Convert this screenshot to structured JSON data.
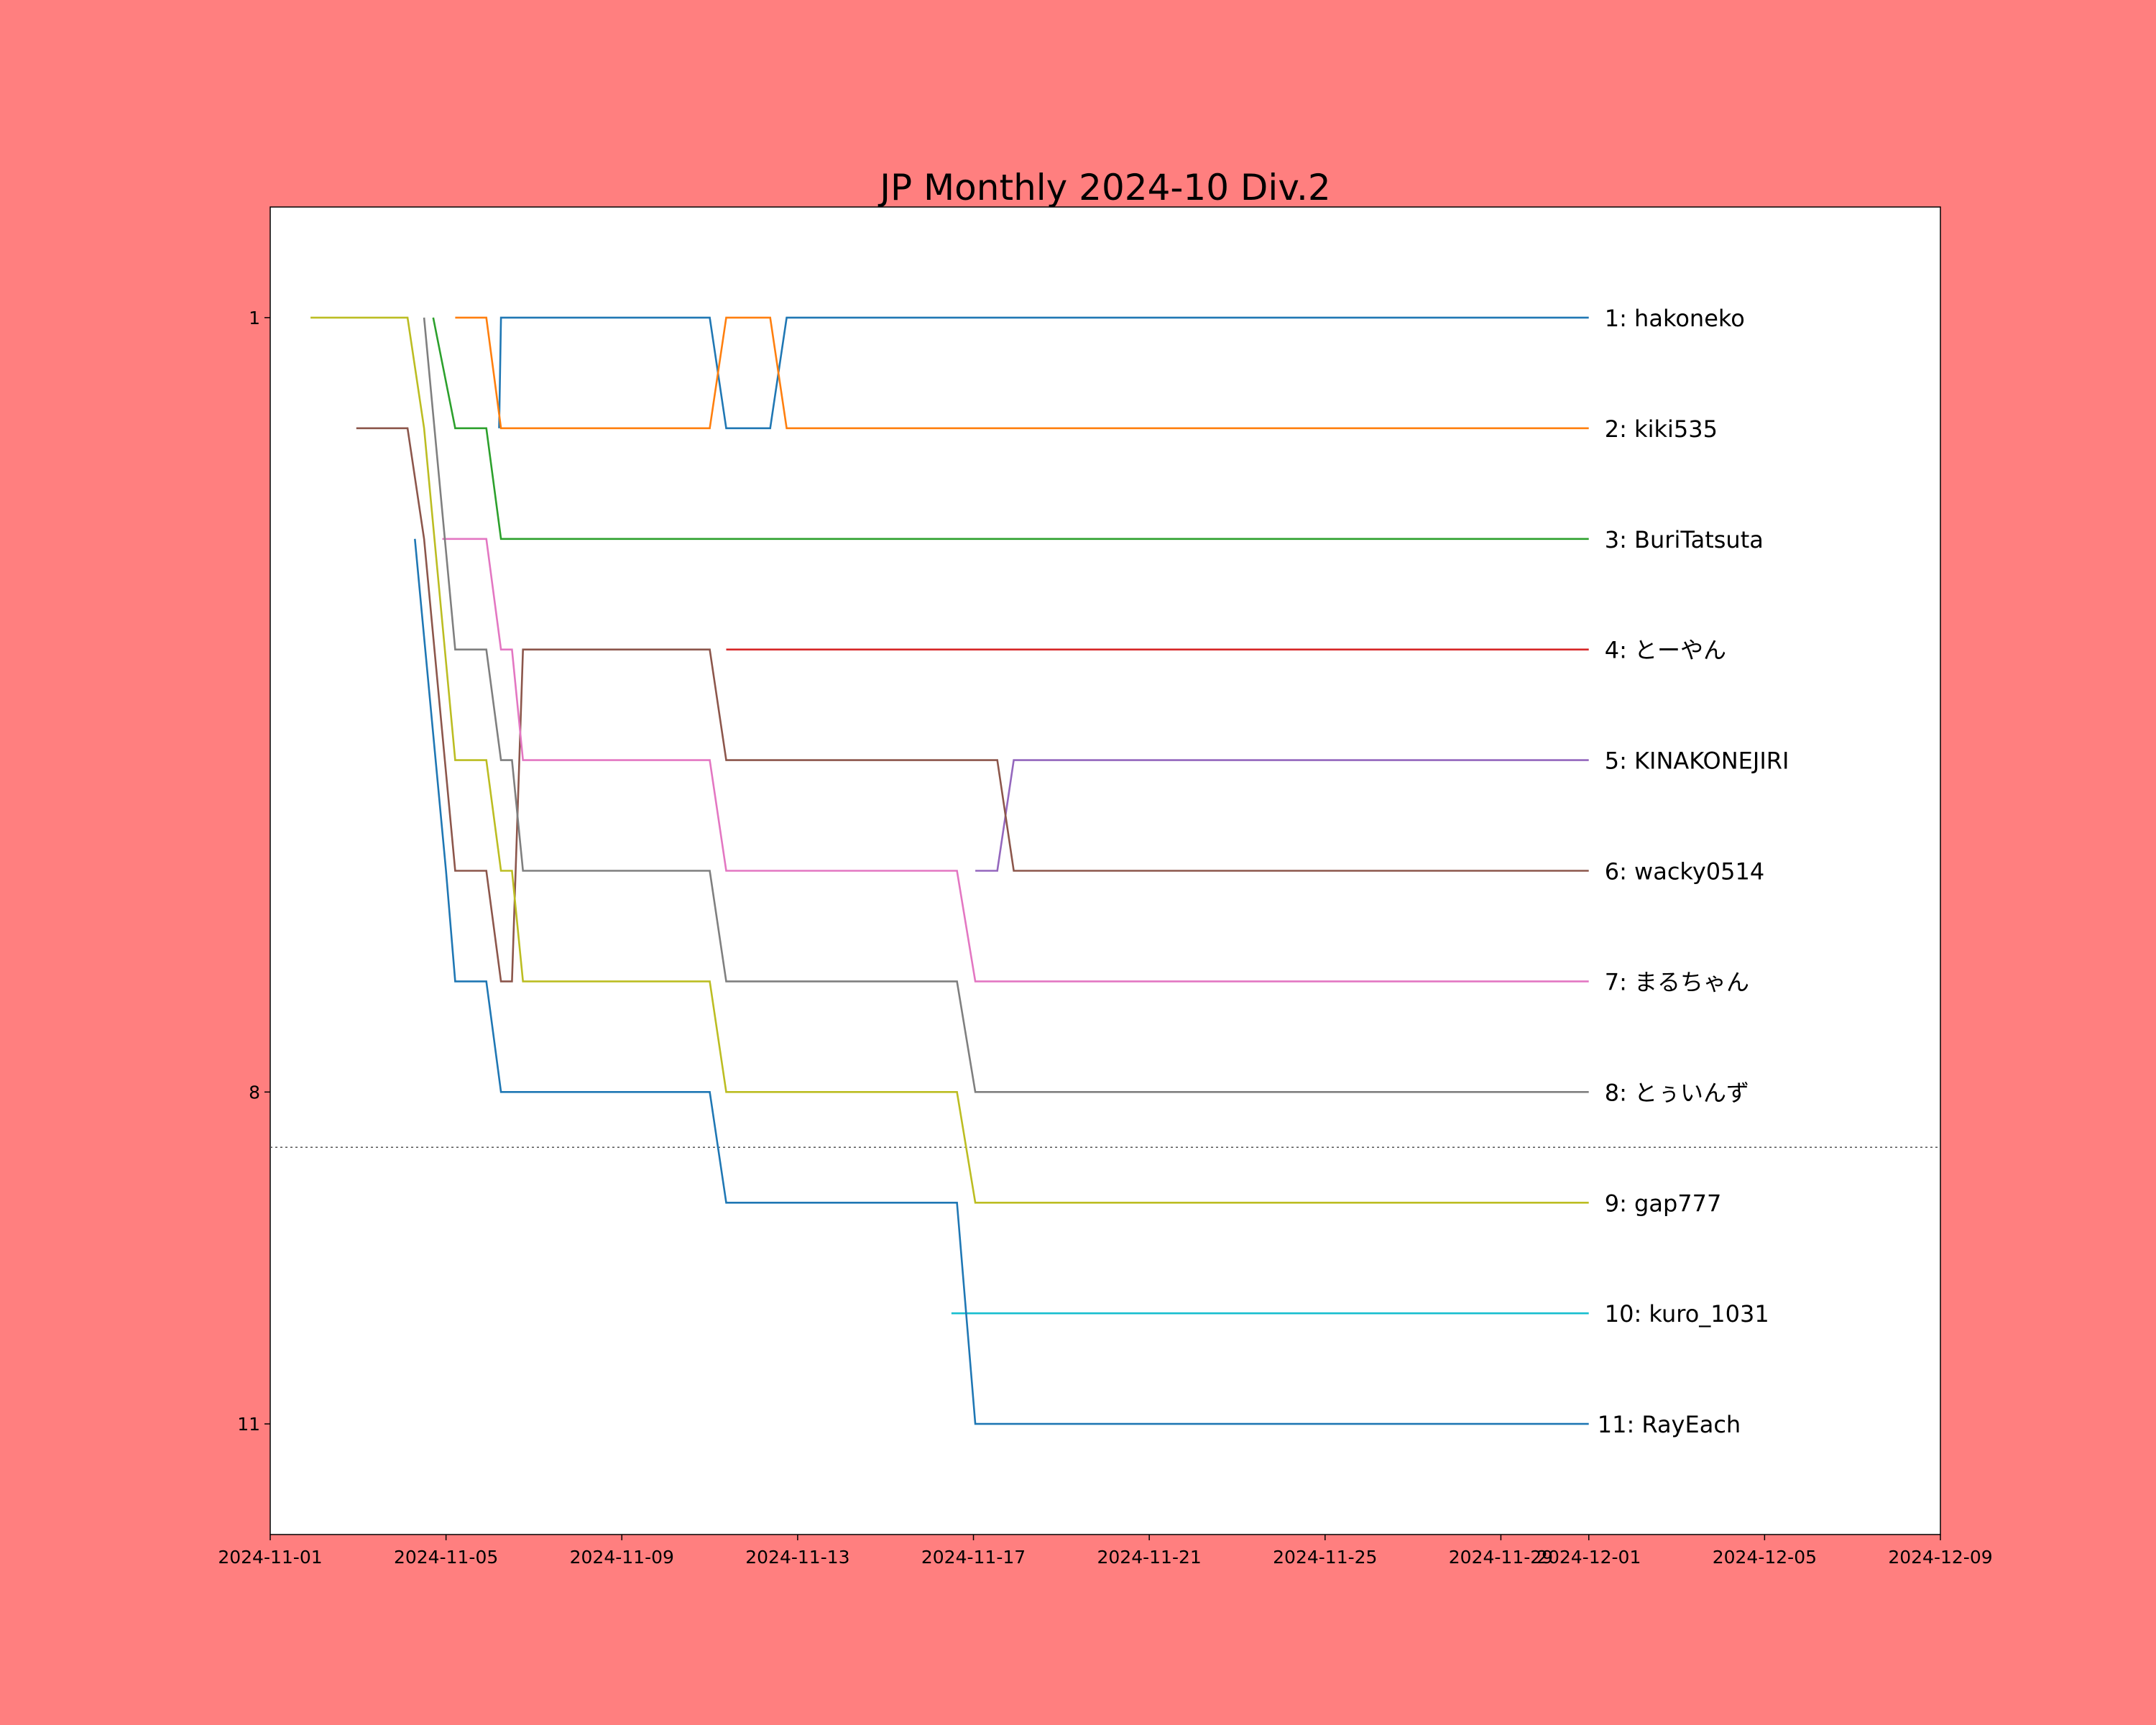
{
  "chart_data": {
    "type": "line",
    "title": "JP Monthly 2024-10 Div.2",
    "xlabel": "",
    "ylabel": "",
    "x_ticks": [
      "2024-11-01",
      "2024-11-05",
      "2024-11-09",
      "2024-11-13",
      "2024-11-17",
      "2024-11-21",
      "2024-11-25",
      "2024-11-29",
      "2024-12-01",
      "2024-12-05",
      "2024-12-09"
    ],
    "y_ticks": [
      "1",
      "8",
      "11"
    ],
    "y_inverted": true,
    "ylim": [
      12,
      0
    ],
    "xlim": [
      "2024-11-01",
      "2024-12-09"
    ],
    "grid": false,
    "cutoff_rank": 8.5,
    "series": [
      {
        "name": "1: hakoneko",
        "color": "#1f77b4",
        "points": [
          [
            "2024-11-06T05:00",
            2
          ],
          [
            "2024-11-06T06:00",
            1
          ],
          [
            "2024-11-11T00:00",
            1
          ],
          [
            "2024-11-11T09:00",
            2
          ],
          [
            "2024-11-12T09:00",
            2
          ],
          [
            "2024-11-12T18:00",
            1
          ],
          [
            "2024-12-01",
            1
          ]
        ]
      },
      {
        "name": "2: kiki535",
        "color": "#ff7f0e",
        "points": [
          [
            "2024-11-05T05:00",
            1
          ],
          [
            "2024-11-05T22:00",
            1
          ],
          [
            "2024-11-06T06:00",
            2
          ],
          [
            "2024-11-11T00:00",
            2
          ],
          [
            "2024-11-11T09:00",
            1
          ],
          [
            "2024-11-12T09:00",
            1
          ],
          [
            "2024-11-12T18:00",
            2
          ],
          [
            "2024-12-01",
            2
          ]
        ]
      },
      {
        "name": "3: BuriTatsuta",
        "color": "#2ca02c",
        "points": [
          [
            "2024-11-04T17:00",
            1
          ],
          [
            "2024-11-05T05:00",
            2
          ],
          [
            "2024-11-05T22:00",
            2
          ],
          [
            "2024-11-06T06:00",
            3
          ],
          [
            "2024-12-01",
            3
          ]
        ]
      },
      {
        "name": "4: とーやん",
        "color": "#d62728",
        "points": [
          [
            "2024-11-11T09:00",
            4
          ],
          [
            "2024-12-01",
            4
          ]
        ]
      },
      {
        "name": "5: KINAKONEJIRI",
        "color": "#9467bd",
        "points": [
          [
            "2024-11-17T01:00",
            6
          ],
          [
            "2024-11-17T13:00",
            6
          ],
          [
            "2024-11-17T22:00",
            5
          ],
          [
            "2024-12-01",
            5
          ]
        ]
      },
      {
        "name": "6: wacky0514",
        "color": "#8c564b",
        "points": [
          [
            "2024-11-02T23:00",
            2
          ],
          [
            "2024-11-04T03:00",
            2
          ],
          [
            "2024-11-04T12:00",
            3
          ],
          [
            "2024-11-05T05:00",
            6
          ],
          [
            "2024-11-05T22:00",
            6
          ],
          [
            "2024-11-06T06:00",
            7
          ],
          [
            "2024-11-06T12:00",
            7
          ],
          [
            "2024-11-06T18:00",
            4
          ],
          [
            "2024-11-11T00:00",
            4
          ],
          [
            "2024-11-11T09:00",
            5
          ],
          [
            "2024-11-17T13:00",
            5
          ],
          [
            "2024-11-17T22:00",
            6
          ],
          [
            "2024-12-01",
            6
          ]
        ]
      },
      {
        "name": "7: まるちゃん",
        "color": "#e377c2",
        "points": [
          [
            "2024-11-04T22:00",
            3
          ],
          [
            "2024-11-05T22:00",
            3
          ],
          [
            "2024-11-06T06:00",
            4
          ],
          [
            "2024-11-06T12:00",
            4
          ],
          [
            "2024-11-06T18:00",
            5
          ],
          [
            "2024-11-11T00:00",
            5
          ],
          [
            "2024-11-11T09:00",
            6
          ],
          [
            "2024-11-16T15:00",
            6
          ],
          [
            "2024-11-17T01:00",
            7
          ],
          [
            "2024-12-01",
            7
          ]
        ]
      },
      {
        "name": "8: とぅいんず",
        "color": "#7f7f7f",
        "points": [
          [
            "2024-11-04T12:00",
            1
          ],
          [
            "2024-11-05T05:00",
            4
          ],
          [
            "2024-11-05T22:00",
            4
          ],
          [
            "2024-11-06T06:00",
            5
          ],
          [
            "2024-11-06T12:00",
            5
          ],
          [
            "2024-11-06T18:00",
            6
          ],
          [
            "2024-11-11T00:00",
            6
          ],
          [
            "2024-11-11T09:00",
            7
          ],
          [
            "2024-11-16T15:00",
            7
          ],
          [
            "2024-11-17T01:00",
            8
          ],
          [
            "2024-12-01",
            8
          ]
        ]
      },
      {
        "name": "9: gap777",
        "color": "#bcbd22",
        "points": [
          [
            "2024-11-01T22:00",
            1
          ],
          [
            "2024-11-04T03:00",
            1
          ],
          [
            "2024-11-04T12:00",
            2
          ],
          [
            "2024-11-05T05:00",
            5
          ],
          [
            "2024-11-05T22:00",
            5
          ],
          [
            "2024-11-06T06:00",
            6
          ],
          [
            "2024-11-06T12:00",
            6
          ],
          [
            "2024-11-06T18:00",
            7
          ],
          [
            "2024-11-11T00:00",
            7
          ],
          [
            "2024-11-11T09:00",
            8
          ],
          [
            "2024-11-16T15:00",
            8
          ],
          [
            "2024-11-17T01:00",
            9
          ],
          [
            "2024-12-01",
            9
          ]
        ]
      },
      {
        "name": "10: kuro_1031",
        "color": "#17becf",
        "points": [
          [
            "2024-11-16T12:00",
            10
          ],
          [
            "2024-12-01",
            10
          ]
        ]
      },
      {
        "name": "11: RayEach",
        "color": "#1f77b4",
        "points": [
          [
            "2024-11-04T07:00",
            3
          ],
          [
            "2024-11-05T00:00",
            6
          ],
          [
            "2024-11-05T05:00",
            7
          ],
          [
            "2024-11-05T22:00",
            7
          ],
          [
            "2024-11-06T06:00",
            8
          ],
          [
            "2024-11-11T00:00",
            8
          ],
          [
            "2024-11-11T09:00",
            9
          ],
          [
            "2024-11-16T15:00",
            9
          ],
          [
            "2024-11-17T01:00",
            11
          ],
          [
            "2024-12-01",
            11
          ]
        ]
      }
    ]
  }
}
